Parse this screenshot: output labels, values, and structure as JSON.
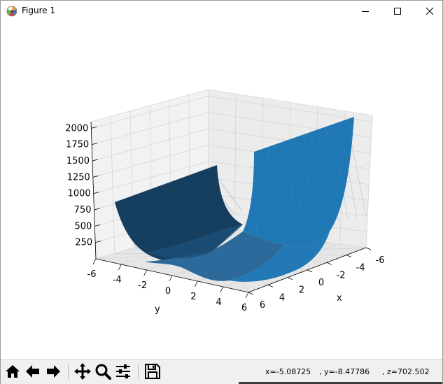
{
  "window": {
    "title": "Figure 1",
    "minimize_icon": "minimize-icon",
    "maximize_icon": "maximize-icon",
    "close_icon": "close-icon"
  },
  "toolbar": {
    "buttons": [
      {
        "name": "home",
        "icon": "home-icon"
      },
      {
        "name": "back",
        "icon": "arrow-left-icon"
      },
      {
        "name": "forward",
        "icon": "arrow-right-icon"
      },
      {
        "name": "pan",
        "icon": "move-icon"
      },
      {
        "name": "zoom",
        "icon": "zoom-icon"
      },
      {
        "name": "configure-subplots",
        "icon": "sliders-icon"
      },
      {
        "name": "save",
        "icon": "save-icon"
      }
    ],
    "coords": {
      "x": "x=-5.08725",
      "y": ", y=-8.47786",
      "z": ", z=702.502"
    }
  },
  "chart_data": {
    "type": "surface",
    "xlabel": "x",
    "ylabel": "y",
    "zlabel": "",
    "x_ticks": [
      "-6",
      "-4",
      "-2",
      "0",
      "2",
      "4",
      "6"
    ],
    "y_ticks": [
      "-6",
      "-4",
      "-2",
      "0",
      "2",
      "4",
      "6"
    ],
    "z_ticks": [
      "250",
      "500",
      "750",
      "1000",
      "1250",
      "1500",
      "1750",
      "2000"
    ],
    "xlim": [
      -6,
      6
    ],
    "ylim": [
      -6,
      6
    ],
    "zlim": [
      0,
      2100
    ],
    "grid": true,
    "colormap": "single-color shaded blue",
    "surface_color": "#1f77b4"
  }
}
